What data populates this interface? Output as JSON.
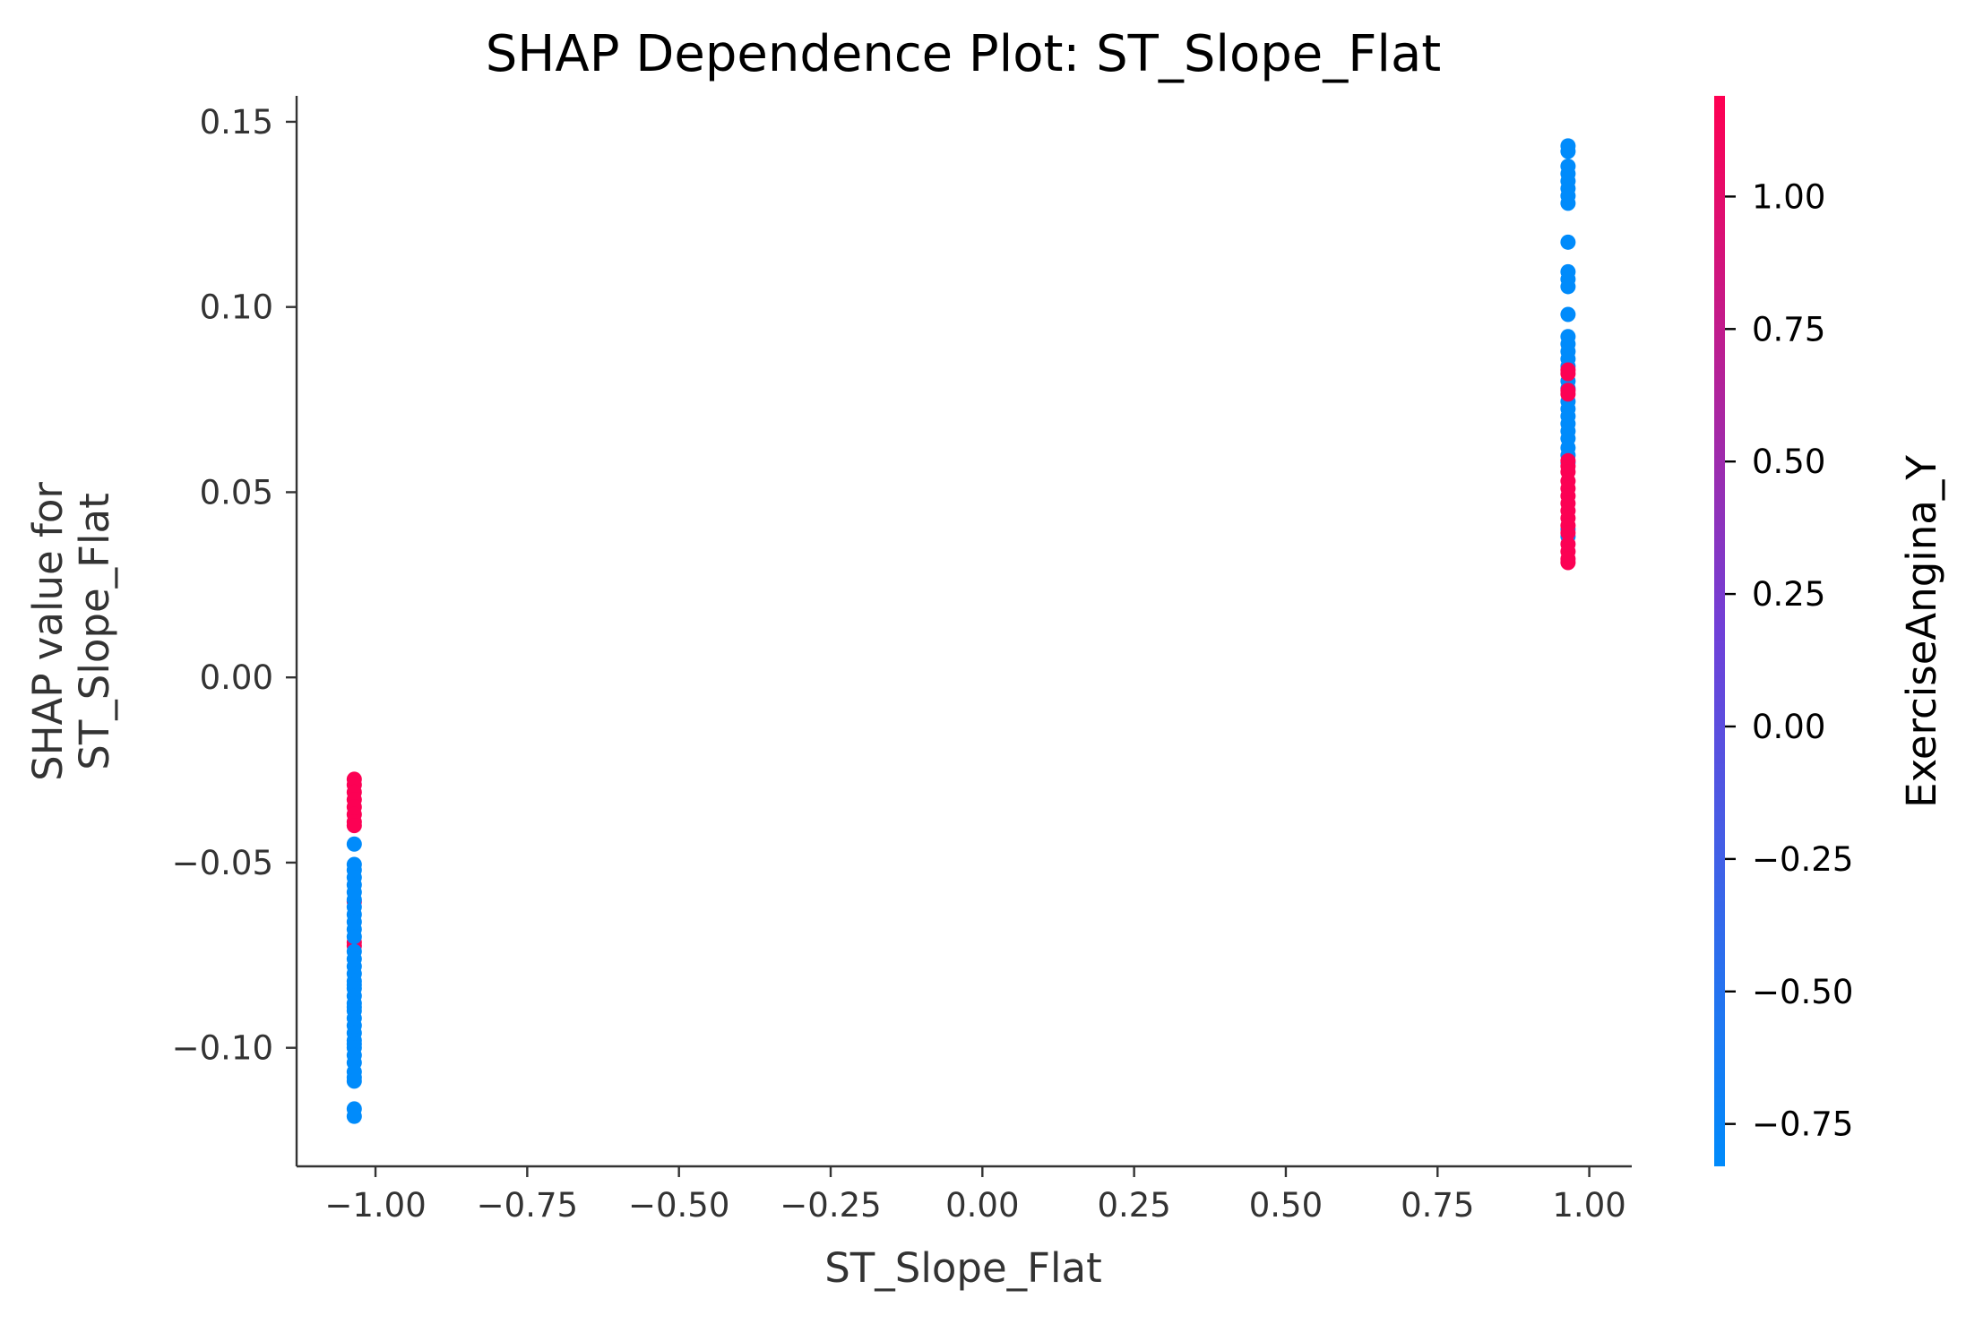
{
  "chart_data": {
    "type": "scatter",
    "title": "SHAP Dependence Plot: ST_Slope_Flat",
    "xlabel": "ST_Slope_Flat",
    "ylabel_lines": [
      "SHAP value for",
      "ST_Slope_Flat"
    ],
    "xlim": [
      -1.13,
      1.07
    ],
    "ylim": [
      -0.132,
      0.157
    ],
    "xticks": [
      -1.0,
      -0.75,
      -0.5,
      -0.25,
      0.0,
      0.25,
      0.5,
      0.75,
      1.0
    ],
    "xtick_labels": [
      "−1.00",
      "−0.75",
      "−0.50",
      "−0.25",
      "0.00",
      "0.25",
      "0.50",
      "0.75",
      "1.00"
    ],
    "yticks": [
      -0.1,
      -0.05,
      0.0,
      0.05,
      0.1,
      0.15
    ],
    "ytick_labels": [
      "−0.10",
      "−0.05",
      "0.00",
      "0.05",
      "0.10",
      "0.15"
    ],
    "grid": false,
    "colorbar": {
      "label": "ExerciseAngina_Y",
      "range": [
        -0.83,
        1.19
      ],
      "ticks": [
        -0.75,
        -0.5,
        -0.25,
        0.0,
        0.25,
        0.5,
        0.75,
        1.0
      ],
      "tick_labels": [
        "−0.75",
        "−0.50",
        "−0.25",
        "0.00",
        "0.25",
        "0.50",
        "0.75",
        "1.00"
      ],
      "colormap": [
        "#008bfb",
        "#ff0052"
      ]
    },
    "series": [
      {
        "x": -1.035,
        "color_value": 1.17,
        "y": [
          -0.0275,
          -0.029,
          -0.031,
          -0.033,
          -0.035,
          -0.037,
          -0.039,
          -0.04,
          -0.0605,
          -0.0715,
          -0.0725
        ]
      },
      {
        "x": -1.035,
        "color_value": -0.83,
        "y": [
          -0.045,
          -0.0505,
          -0.052,
          -0.054,
          -0.056,
          -0.058,
          -0.06,
          -0.062,
          -0.064,
          -0.066,
          -0.068,
          -0.07,
          -0.074,
          -0.076,
          -0.078,
          -0.08,
          -0.082,
          -0.083,
          -0.084,
          -0.086,
          -0.088,
          -0.089,
          -0.09,
          -0.092,
          -0.094,
          -0.096,
          -0.098,
          -0.099,
          -0.1,
          -0.102,
          -0.104,
          -0.1065,
          -0.108,
          -0.109,
          -0.1165,
          -0.1185
        ]
      },
      {
        "x": 0.965,
        "color_value": -0.83,
        "y": [
          0.1435,
          0.142,
          0.138,
          0.136,
          0.134,
          0.132,
          0.13,
          0.128,
          0.1175,
          0.1095,
          0.1075,
          0.1055,
          0.098,
          0.092,
          0.09,
          0.088,
          0.086,
          0.084,
          0.08,
          0.078,
          0.0745,
          0.0725,
          0.0705,
          0.0685,
          0.0665,
          0.0645,
          0.062,
          0.06,
          0.058,
          0.04,
          0.038
        ]
      },
      {
        "x": 0.965,
        "color_value": 1.17,
        "y": [
          0.083,
          0.082,
          0.0775,
          0.0765,
          0.0585,
          0.057,
          0.0555,
          0.053,
          0.051,
          0.049,
          0.047,
          0.045,
          0.043,
          0.041,
          0.039,
          0.036,
          0.034,
          0.032,
          0.031
        ]
      }
    ]
  }
}
